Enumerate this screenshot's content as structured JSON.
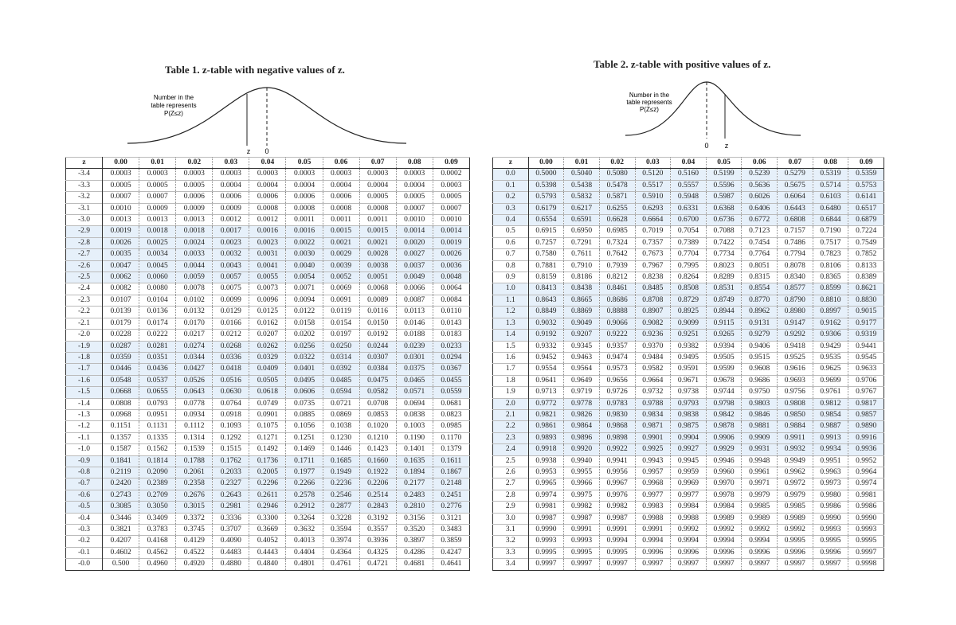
{
  "table1": {
    "title": "Table 1. z-table with negative values of z.",
    "caption_lines": [
      "Number in the",
      "table represents",
      "P(Z≤z)"
    ],
    "curve_labels": [
      "z",
      "0"
    ],
    "header": [
      "z",
      "0.00",
      "0.01",
      "0.02",
      "0.03",
      "0.04",
      "0.05",
      "0.06",
      "0.07",
      "0.08",
      "0.09"
    ],
    "rows": [
      [
        "-3.4",
        "0.0003",
        "0.0003",
        "0.0003",
        "0.0003",
        "0.0003",
        "0.0003",
        "0.0003",
        "0.0003",
        "0.0003",
        "0.0002"
      ],
      [
        "-3.3",
        "0.0005",
        "0.0005",
        "0.0005",
        "0.0004",
        "0.0004",
        "0.0004",
        "0.0004",
        "0.0004",
        "0.0004",
        "0.0003"
      ],
      [
        "-3.2",
        "0.0007",
        "0.0007",
        "0.0006",
        "0.0006",
        "0.0006",
        "0.0006",
        "0.0006",
        "0.0005",
        "0.0005",
        "0.0005"
      ],
      [
        "-3.1",
        "0.0010",
        "0.0009",
        "0.0009",
        "0.0009",
        "0.0008",
        "0.0008",
        "0.0008",
        "0.0008",
        "0.0007",
        "0.0007"
      ],
      [
        "-3.0",
        "0.0013",
        "0.0013",
        "0.0013",
        "0.0012",
        "0.0012",
        "0.0011",
        "0.0011",
        "0.0011",
        "0.0010",
        "0.0010"
      ],
      [
        "-2.9",
        "0.0019",
        "0.0018",
        "0.0018",
        "0.0017",
        "0.0016",
        "0.0016",
        "0.0015",
        "0.0015",
        "0.0014",
        "0.0014"
      ],
      [
        "-2.8",
        "0.0026",
        "0.0025",
        "0.0024",
        "0.0023",
        "0.0023",
        "0.0022",
        "0.0021",
        "0.0021",
        "0.0020",
        "0.0019"
      ],
      [
        "-2.7",
        "0.0035",
        "0.0034",
        "0.0033",
        "0.0032",
        "0.0031",
        "0.0030",
        "0.0029",
        "0.0028",
        "0.0027",
        "0.0026"
      ],
      [
        "-2.6",
        "0.0047",
        "0.0045",
        "0.0044",
        "0.0043",
        "0.0041",
        "0.0040",
        "0.0039",
        "0.0038",
        "0.0037",
        "0.0036"
      ],
      [
        "-2.5",
        "0.0062",
        "0.0060",
        "0.0059",
        "0.0057",
        "0.0055",
        "0.0054",
        "0.0052",
        "0.0051",
        "0.0049",
        "0.0048"
      ],
      [
        "-2.4",
        "0.0082",
        "0.0080",
        "0.0078",
        "0.0075",
        "0.0073",
        "0.0071",
        "0.0069",
        "0.0068",
        "0.0066",
        "0.0064"
      ],
      [
        "-2.3",
        "0.0107",
        "0.0104",
        "0.0102",
        "0.0099",
        "0.0096",
        "0.0094",
        "0.0091",
        "0.0089",
        "0.0087",
        "0.0084"
      ],
      [
        "-2.2",
        "0.0139",
        "0.0136",
        "0.0132",
        "0.0129",
        "0.0125",
        "0.0122",
        "0.0119",
        "0.0116",
        "0.0113",
        "0.0110"
      ],
      [
        "-2.1",
        "0.0179",
        "0.0174",
        "0.0170",
        "0.0166",
        "0.0162",
        "0.0158",
        "0.0154",
        "0.0150",
        "0.0146",
        "0.0143"
      ],
      [
        "-2.0",
        "0.0228",
        "0.0222",
        "0.0217",
        "0.0212",
        "0.0207",
        "0.0202",
        "0.0197",
        "0.0192",
        "0.0188",
        "0.0183"
      ],
      [
        "-1.9",
        "0.0287",
        "0.0281",
        "0.0274",
        "0.0268",
        "0.0262",
        "0.0256",
        "0.0250",
        "0.0244",
        "0.0239",
        "0.0233"
      ],
      [
        "-1.8",
        "0.0359",
        "0.0351",
        "0.0344",
        "0.0336",
        "0.0329",
        "0.0322",
        "0.0314",
        "0.0307",
        "0.0301",
        "0.0294"
      ],
      [
        "-1.7",
        "0.0446",
        "0.0436",
        "0.0427",
        "0.0418",
        "0.0409",
        "0.0401",
        "0.0392",
        "0.0384",
        "0.0375",
        "0.0367"
      ],
      [
        "-1.6",
        "0.0548",
        "0.0537",
        "0.0526",
        "0.0516",
        "0.0505",
        "0.0495",
        "0.0485",
        "0.0475",
        "0.0465",
        "0.0455"
      ],
      [
        "-1.5",
        "0.0668",
        "0.0655",
        "0.0643",
        "0.0630",
        "0.0618",
        "0.0606",
        "0.0594",
        "0.0582",
        "0.0571",
        "0.0559"
      ],
      [
        "-1.4",
        "0.0808",
        "0.0793",
        "0.0778",
        "0.0764",
        "0.0749",
        "0.0735",
        "0.0721",
        "0.0708",
        "0.0694",
        "0.0681"
      ],
      [
        "-1.3",
        "0.0968",
        "0.0951",
        "0.0934",
        "0.0918",
        "0.0901",
        "0.0885",
        "0.0869",
        "0.0853",
        "0.0838",
        "0.0823"
      ],
      [
        "-1.2",
        "0.1151",
        "0.1131",
        "0.1112",
        "0.1093",
        "0.1075",
        "0.1056",
        "0.1038",
        "0.1020",
        "0.1003",
        "0.0985"
      ],
      [
        "-1.1",
        "0.1357",
        "0.1335",
        "0.1314",
        "0.1292",
        "0.1271",
        "0.1251",
        "0.1230",
        "0.1210",
        "0.1190",
        "0.1170"
      ],
      [
        "-1.0",
        "0.1587",
        "0.1562",
        "0.1539",
        "0.1515",
        "0.1492",
        "0.1469",
        "0.1446",
        "0.1423",
        "0.1401",
        "0.1379"
      ],
      [
        "-0.9",
        "0.1841",
        "0.1814",
        "0.1788",
        "0.1762",
        "0.1736",
        "0.1711",
        "0.1685",
        "0.1660",
        "0.1635",
        "0.1611"
      ],
      [
        "-0.8",
        "0.2119",
        "0.2090",
        "0.2061",
        "0.2033",
        "0.2005",
        "0.1977",
        "0.1949",
        "0.1922",
        "0.1894",
        "0.1867"
      ],
      [
        "-0.7",
        "0.2420",
        "0.2389",
        "0.2358",
        "0.2327",
        "0.2296",
        "0.2266",
        "0.2236",
        "0.2206",
        "0.2177",
        "0.2148"
      ],
      [
        "-0.6",
        "0.2743",
        "0.2709",
        "0.2676",
        "0.2643",
        "0.2611",
        "0.2578",
        "0.2546",
        "0.2514",
        "0.2483",
        "0.2451"
      ],
      [
        "-0.5",
        "0.3085",
        "0.3050",
        "0.3015",
        "0.2981",
        "0.2946",
        "0.2912",
        "0.2877",
        "0.2843",
        "0.2810",
        "0.2776"
      ],
      [
        "-0.4",
        "0.3446",
        "0.3409",
        "0.3372",
        "0.3336",
        "0.3300",
        "0.3264",
        "0.3228",
        "0.3192",
        "0.3156",
        "0.3121"
      ],
      [
        "-0.3",
        "0.3821",
        "0.3783",
        "0.3745",
        "0.3707",
        "0.3669",
        "0.3632",
        "0.3594",
        "0.3557",
        "0.3520",
        "0.3483"
      ],
      [
        "-0.2",
        "0.4207",
        "0.4168",
        "0.4129",
        "0.4090",
        "0.4052",
        "0.4013",
        "0.3974",
        "0.3936",
        "0.3897",
        "0.3859"
      ],
      [
        "-0.1",
        "0.4602",
        "0.4562",
        "0.4522",
        "0.4483",
        "0.4443",
        "0.4404",
        "0.4364",
        "0.4325",
        "0.4286",
        "0.4247"
      ],
      [
        "-0.0",
        "0.500",
        "0.4960",
        "0.4920",
        "0.4880",
        "0.4840",
        "0.4801",
        "0.4761",
        "0.4721",
        "0.4681",
        "0.4641"
      ]
    ]
  },
  "table2": {
    "title": "Table 2. z-table with positive values of z.",
    "caption_lines": [
      "Number in the",
      "table represents",
      "P(Z≤z)"
    ],
    "curve_labels": [
      "0",
      "z"
    ],
    "header": [
      "z",
      "0.00",
      "0.01",
      "0.02",
      "0.03",
      "0.04",
      "0.05",
      "0.06",
      "0.07",
      "0.08",
      "0.09"
    ],
    "rows": [
      [
        "0.0",
        "0.5000",
        "0.5040",
        "0.5080",
        "0.5120",
        "0.5160",
        "0.5199",
        "0.5239",
        "0.5279",
        "0.5319",
        "0.5359"
      ],
      [
        "0.1",
        "0.5398",
        "0.5438",
        "0.5478",
        "0.5517",
        "0.5557",
        "0.5596",
        "0.5636",
        "0.5675",
        "0.5714",
        "0.5753"
      ],
      [
        "0.2",
        "0.5793",
        "0.5832",
        "0.5871",
        "0.5910",
        "0.5948",
        "0.5987",
        "0.6026",
        "0.6064",
        "0.6103",
        "0.6141"
      ],
      [
        "0.3",
        "0.6179",
        "0.6217",
        "0.6255",
        "0.6293",
        "0.6331",
        "0.6368",
        "0.6406",
        "0.6443",
        "0.6480",
        "0.6517"
      ],
      [
        "0.4",
        "0.6554",
        "0.6591",
        "0.6628",
        "0.6664",
        "0.6700",
        "0.6736",
        "0.6772",
        "0.6808",
        "0.6844",
        "0.6879"
      ],
      [
        "0.5",
        "0.6915",
        "0.6950",
        "0.6985",
        "0.7019",
        "0.7054",
        "0.7088",
        "0.7123",
        "0.7157",
        "0.7190",
        "0.7224"
      ],
      [
        "0.6",
        "0.7257",
        "0.7291",
        "0.7324",
        "0.7357",
        "0.7389",
        "0.7422",
        "0.7454",
        "0.7486",
        "0.7517",
        "0.7549"
      ],
      [
        "0.7",
        "0.7580",
        "0.7611",
        "0.7642",
        "0.7673",
        "0.7704",
        "0.7734",
        "0.7764",
        "0.7794",
        "0.7823",
        "0.7852"
      ],
      [
        "0.8",
        "0.7881",
        "0.7910",
        "0.7939",
        "0.7967",
        "0.7995",
        "0.8023",
        "0.8051",
        "0.8078",
        "0.8106",
        "0.8133"
      ],
      [
        "0.9",
        "0.8159",
        "0.8186",
        "0.8212",
        "0.8238",
        "0.8264",
        "0.8289",
        "0.8315",
        "0.8340",
        "0.8365",
        "0.8389"
      ],
      [
        "1.0",
        "0.8413",
        "0.8438",
        "0.8461",
        "0.8485",
        "0.8508",
        "0.8531",
        "0.8554",
        "0.8577",
        "0.8599",
        "0.8621"
      ],
      [
        "1.1",
        "0.8643",
        "0.8665",
        "0.8686",
        "0.8708",
        "0.8729",
        "0.8749",
        "0.8770",
        "0.8790",
        "0.8810",
        "0.8830"
      ],
      [
        "1.2",
        "0.8849",
        "0.8869",
        "0.8888",
        "0.8907",
        "0.8925",
        "0.8944",
        "0.8962",
        "0.8980",
        "0.8997",
        "0.9015"
      ],
      [
        "1.3",
        "0.9032",
        "0.9049",
        "0.9066",
        "0.9082",
        "0.9099",
        "0.9115",
        "0.9131",
        "0.9147",
        "0.9162",
        "0.9177"
      ],
      [
        "1.4",
        "0.9192",
        "0.9207",
        "0.9222",
        "0.9236",
        "0.9251",
        "0.9265",
        "0.9279",
        "0.9292",
        "0.9306",
        "0.9319"
      ],
      [
        "1.5",
        "0.9332",
        "0.9345",
        "0.9357",
        "0.9370",
        "0.9382",
        "0.9394",
        "0.9406",
        "0.9418",
        "0.9429",
        "0.9441"
      ],
      [
        "1.6",
        "0.9452",
        "0.9463",
        "0.9474",
        "0.9484",
        "0.9495",
        "0.9505",
        "0.9515",
        "0.9525",
        "0.9535",
        "0.9545"
      ],
      [
        "1.7",
        "0.9554",
        "0.9564",
        "0.9573",
        "0.9582",
        "0.9591",
        "0.9599",
        "0.9608",
        "0.9616",
        "0.9625",
        "0.9633"
      ],
      [
        "1.8",
        "0.9641",
        "0.9649",
        "0.9656",
        "0.9664",
        "0.9671",
        "0.9678",
        "0.9686",
        "0.9693",
        "0.9699",
        "0.9706"
      ],
      [
        "1.9",
        "0.9713",
        "0.9719",
        "0.9726",
        "0.9732",
        "0.9738",
        "0.9744",
        "0.9750",
        "0.9756",
        "0.9761",
        "0.9767"
      ],
      [
        "2.0",
        "0.9772",
        "0.9778",
        "0.9783",
        "0.9788",
        "0.9793",
        "0.9798",
        "0.9803",
        "0.9808",
        "0.9812",
        "0.9817"
      ],
      [
        "2.1",
        "0.9821",
        "0.9826",
        "0.9830",
        "0.9834",
        "0.9838",
        "0.9842",
        "0.9846",
        "0.9850",
        "0.9854",
        "0.9857"
      ],
      [
        "2.2",
        "0.9861",
        "0.9864",
        "0.9868",
        "0.9871",
        "0.9875",
        "0.9878",
        "0.9881",
        "0.9884",
        "0.9887",
        "0.9890"
      ],
      [
        "2.3",
        "0.9893",
        "0.9896",
        "0.9898",
        "0.9901",
        "0.9904",
        "0.9906",
        "0.9909",
        "0.9911",
        "0.9913",
        "0.9916"
      ],
      [
        "2.4",
        "0.9918",
        "0.9920",
        "0.9922",
        "0.9925",
        "0.9927",
        "0.9929",
        "0.9931",
        "0.9932",
        "0.9934",
        "0.9936"
      ],
      [
        "2.5",
        "0.9938",
        "0.9940",
        "0.9941",
        "0.9943",
        "0.9945",
        "0.9946",
        "0.9948",
        "0.9949",
        "0.9951",
        "0.9952"
      ],
      [
        "2.6",
        "0.9953",
        "0.9955",
        "0.9956",
        "0.9957",
        "0.9959",
        "0.9960",
        "0.9961",
        "0.9962",
        "0.9963",
        "0.9964"
      ],
      [
        "2.7",
        "0.9965",
        "0.9966",
        "0.9967",
        "0.9968",
        "0.9969",
        "0.9970",
        "0.9971",
        "0.9972",
        "0.9973",
        "0.9974"
      ],
      [
        "2.8",
        "0.9974",
        "0.9975",
        "0.9976",
        "0.9977",
        "0.9977",
        "0.9978",
        "0.9979",
        "0.9979",
        "0.9980",
        "0.9981"
      ],
      [
        "2.9",
        "0.9981",
        "0.9982",
        "0.9982",
        "0.9983",
        "0.9984",
        "0.9984",
        "0.9985",
        "0.9985",
        "0.9986",
        "0.9986"
      ],
      [
        "3.0",
        "0.9987",
        "0.9987",
        "0.9987",
        "0.9988",
        "0.9988",
        "0.9989",
        "0.9989",
        "0.9989",
        "0.9990",
        "0.9990"
      ],
      [
        "3.1",
        "0.9990",
        "0.9991",
        "0.9991",
        "0.9991",
        "0.9992",
        "0.9992",
        "0.9992",
        "0.9992",
        "0.9993",
        "0.9993"
      ],
      [
        "3.2",
        "0.9993",
        "0.9993",
        "0.9994",
        "0.9994",
        "0.9994",
        "0.9994",
        "0.9994",
        "0.9995",
        "0.9995",
        "0.9995"
      ],
      [
        "3.3",
        "0.9995",
        "0.9995",
        "0.9995",
        "0.9996",
        "0.9996",
        "0.9996",
        "0.9996",
        "0.9996",
        "0.9996",
        "0.9997"
      ],
      [
        "3.4",
        "0.9997",
        "0.9997",
        "0.9997",
        "0.9997",
        "0.9997",
        "0.9997",
        "0.9997",
        "0.9997",
        "0.9997",
        "0.9998"
      ]
    ]
  }
}
